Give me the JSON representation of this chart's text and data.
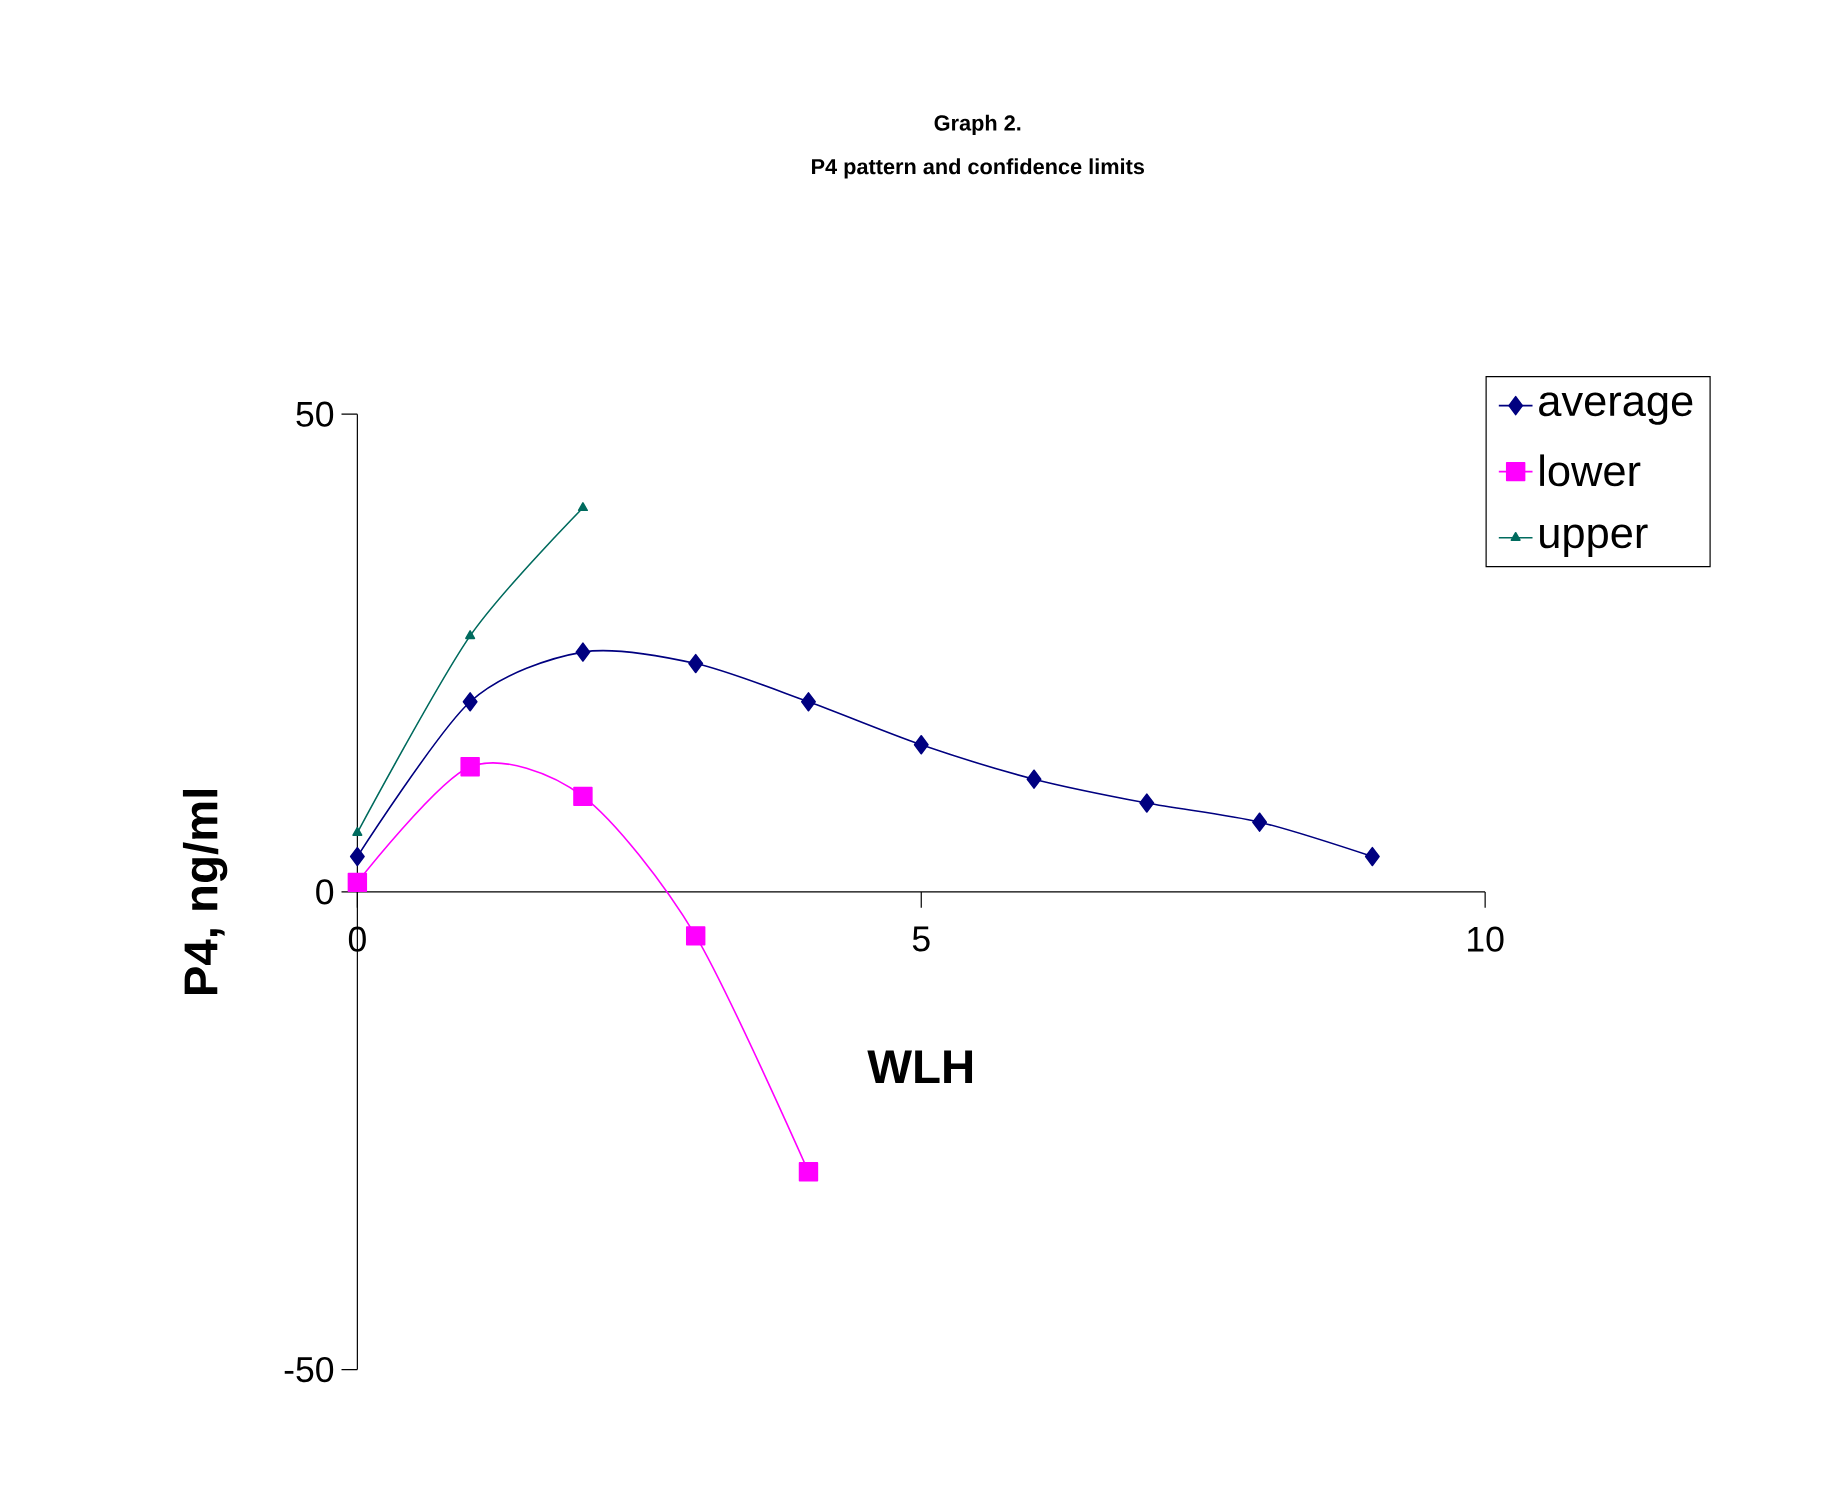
{
  "chart_data": {
    "type": "line",
    "title": "Graph 2.",
    "subtitle": "P4 pattern and confidence limits",
    "xlabel": "WLH",
    "ylabel": "P4, ng/ml",
    "x": [
      0,
      1,
      2,
      3,
      4,
      5,
      6,
      7,
      8,
      9
    ],
    "series": [
      {
        "name": "average",
        "color": "#000080",
        "marker": "diamond",
        "values": [
          3.7,
          19.9,
          25.1,
          23.9,
          19.9,
          15.4,
          11.8,
          9.3,
          7.3,
          3.7
        ]
      },
      {
        "name": "lower",
        "color": "#ff00ff",
        "marker": "square",
        "values": [
          1,
          13.1,
          10,
          -4.6,
          -29.3,
          null,
          null,
          null,
          null,
          null
        ]
      },
      {
        "name": "upper",
        "color": "#006b5e",
        "marker": "triangle",
        "values": [
          6.2,
          26.8,
          40.2,
          null,
          null,
          null,
          null,
          null,
          null,
          null
        ]
      }
    ],
    "xlim": [
      0,
      10
    ],
    "ylim": [
      -50,
      50
    ],
    "xticks": [
      0,
      5,
      10
    ],
    "yticks": [
      -50,
      0,
      50
    ],
    "grid": false,
    "legend": "top right",
    "line_style": "solid"
  }
}
